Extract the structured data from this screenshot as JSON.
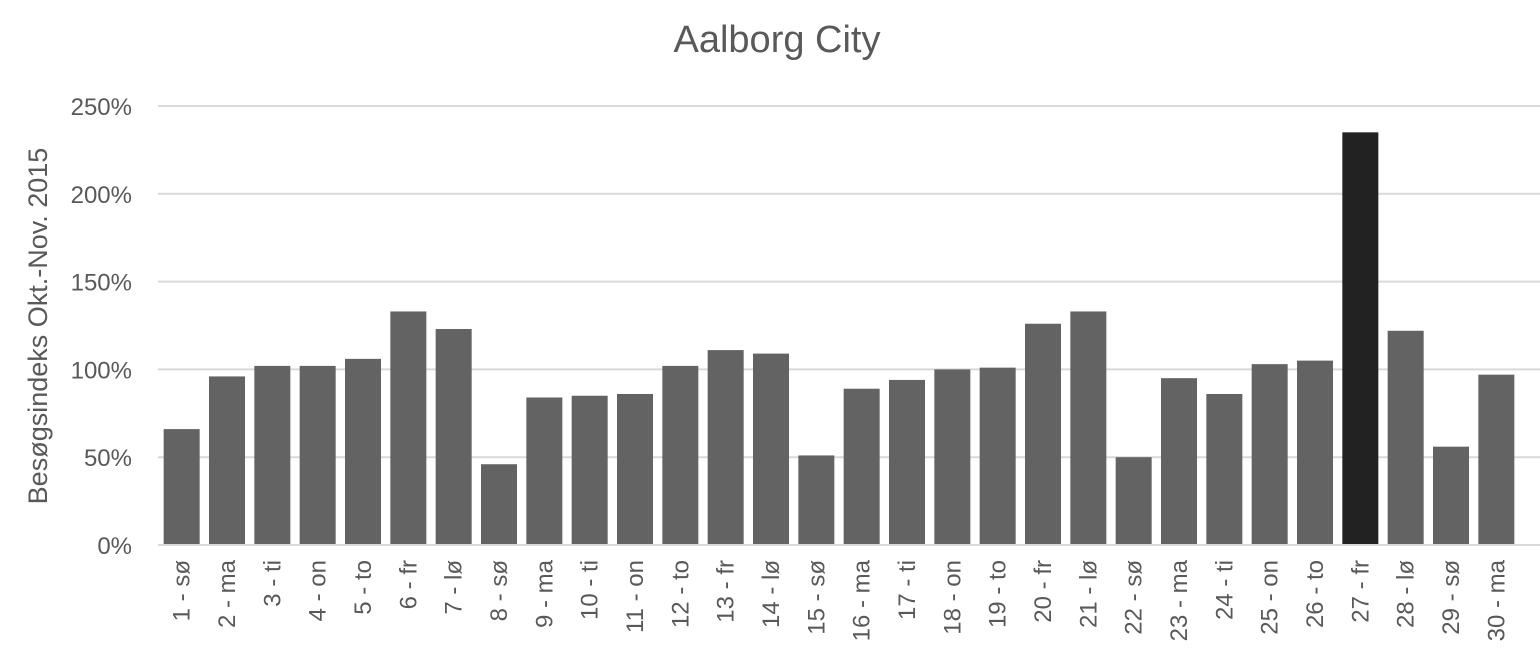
{
  "chart_data": {
    "type": "bar",
    "title": "Aalborg City",
    "xlabel": "",
    "ylabel": "Besøgsindeks Okt.-Nov. 2015",
    "ylim": [
      0,
      250
    ],
    "yticks": [
      "0%",
      "50%",
      "100%",
      "150%",
      "200%",
      "250%"
    ],
    "grid": true,
    "colors": {
      "default_bar": "#636363",
      "highlight_bar": "#222222",
      "grid": "#d9d9d9",
      "text": "#595959"
    },
    "highlight_index": 26,
    "categories": [
      "1 - sø",
      "2 - ma",
      "3 - ti",
      "4 - on",
      "5 - to",
      "6 - fr",
      "7 - lø",
      "8 - sø",
      "9 - ma",
      "10 - ti",
      "11 - on",
      "12 - to",
      "13 - fr",
      "14 - lø",
      "15 - sø",
      "16 - ma",
      "17 - ti",
      "18 - on",
      "19 - to",
      "20 - fr",
      "21 - lø",
      "22 - sø",
      "23 - ma",
      "24 - ti",
      "25 - on",
      "26 - to",
      "27 - fr",
      "28 - lø",
      "29 - sø",
      "30 - ma"
    ],
    "values": [
      66,
      96,
      102,
      102,
      106,
      133,
      123,
      46,
      84,
      85,
      86,
      102,
      111,
      109,
      51,
      89,
      94,
      100,
      101,
      126,
      133,
      50,
      95,
      86,
      103,
      105,
      235,
      122,
      56,
      97
    ]
  }
}
